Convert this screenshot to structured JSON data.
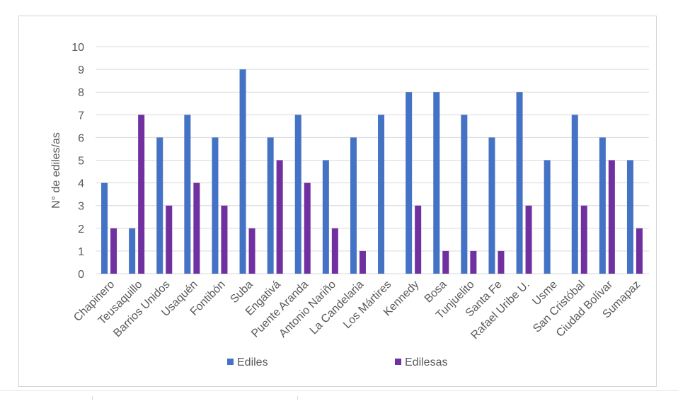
{
  "chart_data": {
    "type": "bar",
    "ylabel": "N° de ediles/as",
    "ylim": [
      0,
      10
    ],
    "yticks": [
      0,
      1,
      2,
      3,
      4,
      5,
      6,
      7,
      8,
      9,
      10
    ],
    "grid": true,
    "legend_position": "bottom",
    "categories": [
      "Chapinero",
      "Teusaquillo",
      "Barrios Unidos",
      "Usaquén",
      "Fontibón",
      "Suba",
      "Engativá",
      "Puente Aranda",
      "Antonio Nariño",
      "La Candelaria",
      "Los Mártires",
      "Kennedy",
      "Bosa",
      "Tunjuelito",
      "Santa Fe",
      "Rafael Uribe U.",
      "Usme",
      "San Cristóbal",
      "Ciudad Bolívar",
      "Sumapaz"
    ],
    "series": [
      {
        "name": "Ediles",
        "color": "#4472c4",
        "values": [
          4,
          2,
          6,
          7,
          6,
          9,
          6,
          7,
          5,
          6,
          7,
          8,
          8,
          7,
          6,
          8,
          5,
          7,
          6,
          5
        ]
      },
      {
        "name": "Edilesas",
        "color": "#7030a0",
        "values": [
          2,
          7,
          3,
          4,
          3,
          2,
          5,
          4,
          2,
          1,
          0,
          3,
          1,
          1,
          1,
          3,
          0,
          3,
          5,
          2
        ]
      }
    ]
  }
}
